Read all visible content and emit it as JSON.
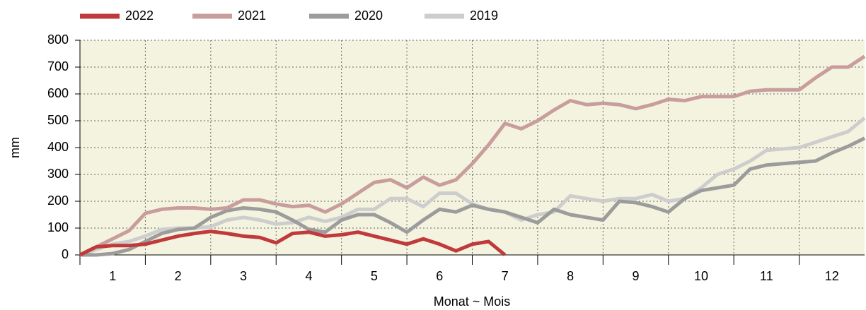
{
  "chart_data": {
    "type": "line",
    "y_label": "mm",
    "x_label": "Monat   ~   Mois",
    "x": [
      0.5,
      0.75,
      1,
      1.25,
      1.5,
      1.75,
      2,
      2.25,
      2.5,
      2.75,
      3,
      3.25,
      3.5,
      3.75,
      4,
      4.25,
      4.5,
      4.75,
      5,
      5.25,
      5.5,
      5.75,
      6,
      6.25,
      6.5,
      6.75,
      7,
      7.25,
      7.5,
      7.75,
      8,
      8.25,
      8.5,
      8.75,
      9,
      9.25,
      9.5,
      9.75,
      10,
      10.25,
      10.5,
      10.75,
      11,
      11.25,
      11.5,
      11.75,
      12,
      12.25,
      12.5
    ],
    "series": [
      {
        "name": "2022",
        "color": "#c0393b",
        "values": [
          0,
          30,
          35,
          35,
          40,
          55,
          70,
          80,
          88,
          80,
          70,
          65,
          45,
          80,
          85,
          70,
          75,
          85,
          70,
          55,
          40,
          60,
          40,
          15,
          40,
          50,
          0,
          null,
          null,
          null,
          null,
          null,
          null,
          null,
          null,
          null,
          null,
          null,
          null,
          null,
          null,
          null,
          null,
          null,
          null,
          null,
          null,
          null,
          null
        ]
      },
      {
        "name": "2021",
        "color": "#c99d9d",
        "values": [
          0,
          30,
          60,
          90,
          155,
          170,
          175,
          175,
          170,
          175,
          205,
          205,
          190,
          180,
          185,
          160,
          190,
          230,
          270,
          280,
          250,
          290,
          260,
          280,
          340,
          410,
          490,
          470,
          500,
          540,
          575,
          560,
          565,
          560,
          545,
          560,
          580,
          575,
          590,
          590,
          590,
          610,
          615,
          615,
          615,
          660,
          700,
          700,
          740
        ]
      },
      {
        "name": "2020",
        "color": "#9c9c9c",
        "values": [
          0,
          0,
          5,
          20,
          50,
          80,
          95,
          100,
          140,
          165,
          175,
          170,
          160,
          130,
          95,
          85,
          130,
          150,
          150,
          120,
          85,
          130,
          170,
          160,
          185,
          170,
          160,
          140,
          120,
          170,
          150,
          140,
          130,
          200,
          195,
          180,
          160,
          210,
          240,
          250,
          260,
          320,
          335,
          340,
          345,
          350,
          380,
          405,
          435
        ]
      },
      {
        "name": "2019",
        "color": "#cdcdcd",
        "values": [
          0,
          20,
          40,
          50,
          70,
          95,
          100,
          100,
          105,
          130,
          140,
          130,
          115,
          120,
          140,
          125,
          140,
          170,
          170,
          210,
          210,
          180,
          230,
          230,
          190,
          170,
          160,
          130,
          150,
          160,
          220,
          210,
          200,
          210,
          210,
          225,
          200,
          210,
          250,
          300,
          320,
          350,
          390,
          395,
          400,
          420,
          440,
          460,
          510
        ]
      }
    ],
    "xlim": [
      0.5,
      12.5
    ],
    "xticks": [
      1,
      2,
      3,
      4,
      5,
      6,
      7,
      8,
      9,
      10,
      11,
      12
    ],
    "xgrid": [
      1.5,
      2.5,
      3.5,
      4.5,
      5.5,
      6.5,
      7.5,
      8.5,
      9.5,
      10.5,
      11.5
    ],
    "ylim": [
      0,
      800
    ],
    "yticks": [
      0,
      100,
      200,
      300,
      400,
      500,
      600,
      700,
      800
    ],
    "grid": true,
    "background": "#f3f3df",
    "legend": "top"
  }
}
